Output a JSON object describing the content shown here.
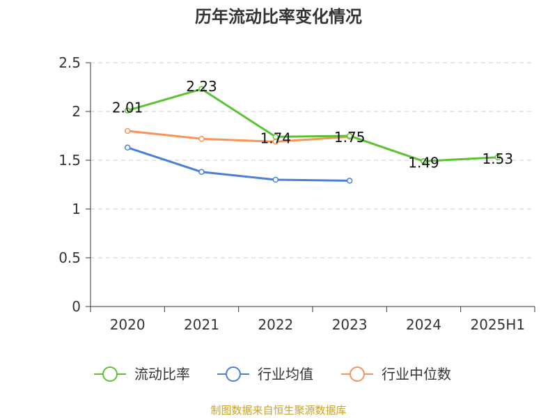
{
  "chart_data": {
    "type": "line",
    "title": "历年流动比率变化情况",
    "categories": [
      "2020",
      "2021",
      "2022",
      "2023",
      "2024",
      "2025H1"
    ],
    "ylim": [
      0,
      2.5
    ],
    "yticks": [
      "0",
      "0.5",
      "1",
      "1.5",
      "2",
      "2.5"
    ],
    "grid": true,
    "legend_position": "bottom",
    "series": [
      {
        "name": "流动比率",
        "color": "#5cc231",
        "values": [
          2.01,
          2.23,
          1.74,
          1.75,
          1.49,
          1.53
        ],
        "data_labels": [
          "2.01",
          "2.23",
          "1.74",
          "1.75",
          "1.49",
          "1.53"
        ]
      },
      {
        "name": "行业均值",
        "color": "#4a7fd8",
        "values": [
          1.63,
          1.38,
          1.3,
          1.29,
          null,
          null
        ]
      },
      {
        "name": "行业中位数",
        "color": "#f79459",
        "values": [
          1.8,
          1.72,
          1.69,
          1.74,
          null,
          null
        ]
      }
    ]
  },
  "source_note": "制图数据来自恒生聚源数据库"
}
